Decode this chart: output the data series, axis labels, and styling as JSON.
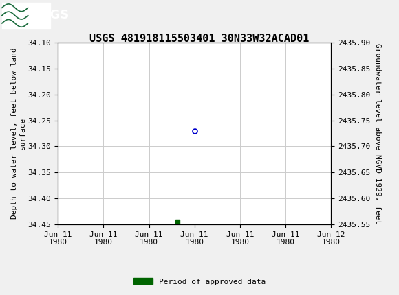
{
  "title": "USGS 481918115503401 30N33W32ACAD01",
  "usgs_header_color": "#1a6b3c",
  "bg_color": "#f0f0f0",
  "plot_bg_color": "#ffffff",
  "grid_color": "#cccccc",
  "left_ylabel": "Depth to water level, feet below land\nsurface",
  "right_ylabel": "Groundwater level above NGVD 1929, feet",
  "ylim_left_top": 34.1,
  "ylim_left_bottom": 34.45,
  "ylim_right_top": 2435.9,
  "ylim_right_bottom": 2435.55,
  "yticks_left": [
    34.1,
    34.15,
    34.2,
    34.25,
    34.3,
    34.35,
    34.4,
    34.45
  ],
  "yticks_right": [
    2435.9,
    2435.85,
    2435.8,
    2435.75,
    2435.7,
    2435.65,
    2435.6,
    2435.55
  ],
  "data_point_x_hours": 12,
  "data_point_y": 34.27,
  "data_point_color": "#0000cc",
  "data_point_markersize": 5,
  "green_square_x_hours": 10.5,
  "green_square_y": 34.445,
  "green_square_color": "#006400",
  "legend_label": "Period of approved data",
  "font_family": "DejaVu Sans Mono",
  "title_fontsize": 11,
  "axis_label_fontsize": 8,
  "tick_fontsize": 8,
  "xaxis_start_hours": 0,
  "xaxis_end_hours": 24,
  "xtick_hours": [
    0,
    4,
    8,
    12,
    16,
    20,
    24
  ],
  "xtick_days": [
    11,
    11,
    11,
    11,
    11,
    11,
    12
  ]
}
